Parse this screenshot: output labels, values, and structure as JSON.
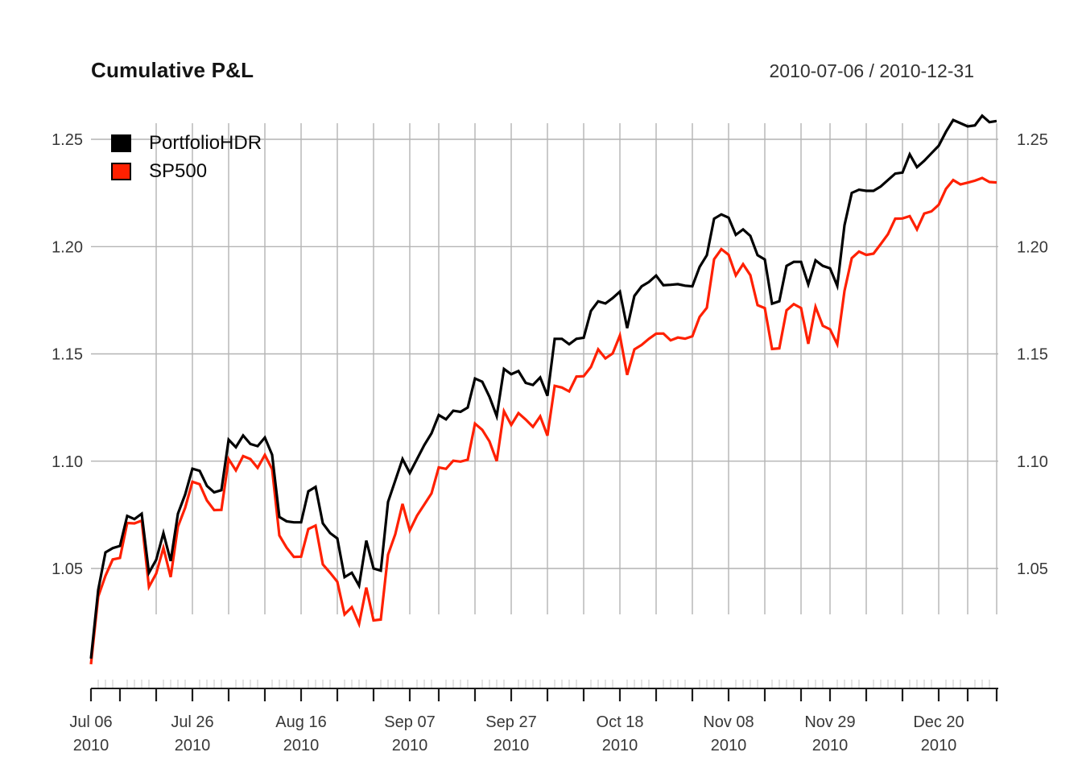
{
  "header": {
    "title": "Cumulative P&L",
    "date_range": "2010-07-06 / 2010-12-31"
  },
  "legend_items": [
    {
      "label": "PortfolioHDR",
      "color": "#000000"
    },
    {
      "label": "SP500",
      "color": "#ff2000"
    }
  ],
  "colors": {
    "series_portfoliohdr": "#000000",
    "series_sp500": "#ff2000",
    "gridline": "#b4b4b4",
    "axis_line": "#1c1c1c",
    "minor_tick": "#dcdcdc",
    "axis_text": "#383838",
    "title_text": "#141414"
  },
  "y_axis": {
    "ticks": [
      "1.05",
      "1.10",
      "1.15",
      "1.20",
      "1.25"
    ],
    "tick_values": [
      1.05,
      1.1,
      1.15,
      1.2,
      1.25
    ],
    "sides": "both"
  },
  "x_axis": {
    "major_labels": [
      {
        "index": 0,
        "line1": "Jul 06",
        "line2": "2010"
      },
      {
        "index": 14,
        "line1": "Jul 26",
        "line2": "2010"
      },
      {
        "index": 29,
        "line1": "Aug 16",
        "line2": "2010"
      },
      {
        "index": 44,
        "line1": "Sep 07",
        "line2": "2010"
      },
      {
        "index": 58,
        "line1": "Sep 27",
        "line2": "2010"
      },
      {
        "index": 73,
        "line1": "Oct 18",
        "line2": "2010"
      },
      {
        "index": 88,
        "line1": "Nov 08",
        "line2": "2010"
      },
      {
        "index": 102,
        "line1": "Nov 29",
        "line2": "2010"
      },
      {
        "index": 117,
        "line1": "Dec 20",
        "line2": "2010"
      }
    ]
  },
  "chart_data": {
    "type": "line",
    "title": "Cumulative P&L",
    "subtitle": "2010-07-06 / 2010-12-31",
    "xlabel": "",
    "ylabel": "",
    "grid": true,
    "legend_position": "topleft",
    "ylim": [
      0.994,
      1.263
    ],
    "yticks": [
      1.05,
      1.1,
      1.15,
      1.2,
      1.25
    ],
    "x": [
      "2010-07-06",
      "2010-07-07",
      "2010-07-08",
      "2010-07-09",
      "2010-07-12",
      "2010-07-13",
      "2010-07-14",
      "2010-07-15",
      "2010-07-16",
      "2010-07-19",
      "2010-07-20",
      "2010-07-21",
      "2010-07-22",
      "2010-07-23",
      "2010-07-26",
      "2010-07-27",
      "2010-07-28",
      "2010-07-29",
      "2010-07-30",
      "2010-08-02",
      "2010-08-03",
      "2010-08-04",
      "2010-08-05",
      "2010-08-06",
      "2010-08-09",
      "2010-08-10",
      "2010-08-11",
      "2010-08-12",
      "2010-08-13",
      "2010-08-16",
      "2010-08-17",
      "2010-08-18",
      "2010-08-19",
      "2010-08-20",
      "2010-08-23",
      "2010-08-24",
      "2010-08-25",
      "2010-08-26",
      "2010-08-27",
      "2010-08-30",
      "2010-08-31",
      "2010-09-01",
      "2010-09-02",
      "2010-09-03",
      "2010-09-07",
      "2010-09-08",
      "2010-09-09",
      "2010-09-10",
      "2010-09-13",
      "2010-09-14",
      "2010-09-15",
      "2010-09-16",
      "2010-09-17",
      "2010-09-20",
      "2010-09-21",
      "2010-09-22",
      "2010-09-23",
      "2010-09-24",
      "2010-09-27",
      "2010-09-28",
      "2010-09-29",
      "2010-09-30",
      "2010-10-01",
      "2010-10-04",
      "2010-10-05",
      "2010-10-06",
      "2010-10-07",
      "2010-10-08",
      "2010-10-11",
      "2010-10-12",
      "2010-10-13",
      "2010-10-14",
      "2010-10-15",
      "2010-10-18",
      "2010-10-19",
      "2010-10-20",
      "2010-10-21",
      "2010-10-22",
      "2010-10-25",
      "2010-10-26",
      "2010-10-27",
      "2010-10-28",
      "2010-10-29",
      "2010-11-01",
      "2010-11-02",
      "2010-11-03",
      "2010-11-04",
      "2010-11-05",
      "2010-11-08",
      "2010-11-09",
      "2010-11-10",
      "2010-11-11",
      "2010-11-12",
      "2010-11-15",
      "2010-11-16",
      "2010-11-17",
      "2010-11-18",
      "2010-11-19",
      "2010-11-22",
      "2010-11-23",
      "2010-11-24",
      "2010-11-26",
      "2010-11-29",
      "2010-11-30",
      "2010-12-01",
      "2010-12-02",
      "2010-12-03",
      "2010-12-06",
      "2010-12-07",
      "2010-12-08",
      "2010-12-09",
      "2010-12-10",
      "2010-12-13",
      "2010-12-14",
      "2010-12-15",
      "2010-12-16",
      "2010-12-17",
      "2010-12-20",
      "2010-12-21",
      "2010-12-22",
      "2010-12-23",
      "2010-12-27",
      "2010-12-28",
      "2010-12-29",
      "2010-12-30",
      "2010-12-31"
    ],
    "series": [
      {
        "name": "PortfolioHDR",
        "color": "#000000",
        "values": [
          1.008,
          1.04,
          1.0575,
          1.0595,
          1.0605,
          1.0745,
          1.073,
          1.0755,
          1.048,
          1.054,
          1.0665,
          1.0535,
          1.0755,
          1.0845,
          1.0965,
          1.0955,
          1.0885,
          1.0855,
          1.0865,
          1.11,
          1.1065,
          1.112,
          1.108,
          1.107,
          1.111,
          1.103,
          1.074,
          1.072,
          1.0715,
          1.0715,
          1.086,
          1.088,
          1.071,
          1.0665,
          1.064,
          1.046,
          1.048,
          1.042,
          1.063,
          1.05,
          1.049,
          1.081,
          1.091,
          1.101,
          1.0945,
          1.101,
          1.1075,
          1.113,
          1.1215,
          1.1195,
          1.1235,
          1.123,
          1.125,
          1.1385,
          1.137,
          1.13,
          1.121,
          1.143,
          1.1405,
          1.142,
          1.1365,
          1.1355,
          1.139,
          1.1305,
          1.157,
          1.157,
          1.1545,
          1.157,
          1.1575,
          1.17,
          1.1745,
          1.1735,
          1.176,
          1.179,
          1.162,
          1.177,
          1.1815,
          1.1835,
          1.1865,
          1.182,
          1.1822,
          1.1825,
          1.1818,
          1.1815,
          1.1905,
          1.196,
          1.213,
          1.215,
          1.2135,
          1.2055,
          1.208,
          1.205,
          1.196,
          1.194,
          1.1734,
          1.1745,
          1.191,
          1.1929,
          1.1929,
          1.1824,
          1.1936,
          1.191,
          1.1899,
          1.1817,
          1.21,
          1.225,
          1.2265,
          1.226,
          1.226,
          1.228,
          1.231,
          1.234,
          1.2345,
          1.243,
          1.237,
          1.24,
          1.2435,
          1.247,
          1.2535,
          1.259,
          1.2575,
          1.256,
          1.2565,
          1.261,
          1.258,
          1.2585
        ]
      },
      {
        "name": "SP500",
        "color": "#ff2000",
        "values": [
          1.0054,
          1.0369,
          1.0466,
          1.0542,
          1.0549,
          1.0712,
          1.071,
          1.0723,
          1.0414,
          1.0476,
          1.0596,
          1.046,
          1.0695,
          1.0783,
          1.0904,
          1.0893,
          1.0817,
          1.0772,
          1.0773,
          1.101,
          1.0957,
          1.1024,
          1.101,
          1.0969,
          1.1029,
          1.0963,
          1.0654,
          1.0597,
          1.0554,
          1.0555,
          1.0684,
          1.07,
          1.0519,
          1.048,
          1.0438,
          1.0286,
          1.032,
          1.0241,
          1.0411,
          1.0258,
          1.0262,
          1.0564,
          1.066,
          1.0801,
          1.0677,
          1.0746,
          1.0798,
          1.085,
          1.0971,
          1.0964,
          1.1002,
          1.0998,
          1.1007,
          1.1175,
          1.1146,
          1.1092,
          1.1,
          1.1233,
          1.1169,
          1.1224,
          1.1194,
          1.116,
          1.1209,
          1.1119,
          1.1351,
          1.1343,
          1.1325,
          1.1394,
          1.1396,
          1.1439,
          1.1521,
          1.1479,
          1.1502,
          1.1586,
          1.1402,
          1.1521,
          1.1542,
          1.157,
          1.1594,
          1.1595,
          1.1563,
          1.1576,
          1.1571,
          1.1582,
          1.1672,
          1.1715,
          1.1941,
          1.1988,
          1.1962,
          1.1866,
          1.1918,
          1.1867,
          1.1727,
          1.1713,
          1.1523,
          1.1526,
          1.1703,
          1.1732,
          1.1714,
          1.1547,
          1.1719,
          1.1631,
          1.1615,
          1.1545,
          1.1794,
          1.1946,
          1.1977,
          1.1961,
          1.1967,
          1.2012,
          1.2058,
          1.213,
          1.2131,
          1.2142,
          1.208,
          1.2154,
          1.2164,
          1.2195,
          1.2269,
          1.231,
          1.229,
          1.2298,
          1.2307,
          1.232,
          1.2301,
          1.2299
        ]
      }
    ]
  }
}
